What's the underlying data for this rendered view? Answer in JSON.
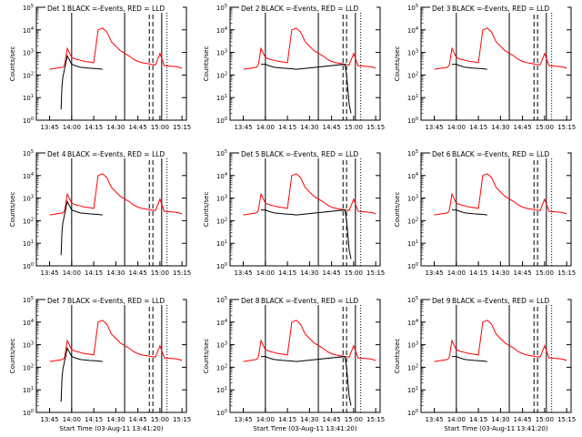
{
  "figure": {
    "y_label": "Counts/sec",
    "x_label": "Start Time (03-Aug-11 13:41:20)",
    "x_ticks": [
      "13:45",
      "14:00",
      "14:15",
      "14:30",
      "14:45",
      "15:00",
      "15:15"
    ],
    "y_ticks": [
      "10^0",
      "10^1",
      "10^2",
      "10^3",
      "10^4",
      "10^5"
    ],
    "legend_text": "BLACK =-Events,  RED = LLD",
    "line_colors": {
      "events": "#000000",
      "lld": "#ff0000"
    }
  },
  "chart_data": [
    {
      "type": "line",
      "title": "Det 1",
      "ylim": [
        1,
        100000
      ],
      "yscale": "log",
      "x_labels_shown": true,
      "xlabel_shown": false,
      "markers": {
        "solid": [
          14.0,
          14.6,
          15.02
        ],
        "dashed": [
          14.88,
          14.92
        ],
        "dotted": [
          15.08
        ]
      },
      "series": [
        {
          "name": "RED",
          "x": [
            13.75,
            13.83,
            13.9,
            13.92,
            13.95,
            14.0,
            14.05,
            14.1,
            14.15,
            14.2,
            14.25,
            14.3,
            14.35,
            14.4,
            14.45,
            14.55,
            14.65,
            14.7,
            14.75,
            14.8,
            14.9,
            14.95,
            15.0,
            15.05,
            15.1,
            15.2,
            15.25
          ],
          "y": [
            180,
            200,
            220,
            280,
            1500,
            600,
            500,
            450,
            400,
            380,
            350,
            10000,
            12000,
            8000,
            3000,
            1200,
            700,
            500,
            400,
            350,
            300,
            280,
            900,
            260,
            250,
            230,
            200
          ]
        },
        {
          "name": "BLACK",
          "x": [
            13.88,
            13.89,
            13.9,
            13.95,
            14.0,
            14.05,
            14.1,
            14.2,
            14.3,
            14.35
          ],
          "y": [
            3,
            30,
            80,
            700,
            300,
            250,
            220,
            200,
            190,
            180
          ]
        }
      ]
    },
    {
      "type": "line",
      "title": "Det 2",
      "ylim": [
        1,
        100000
      ],
      "yscale": "log",
      "x_labels_shown": true,
      "xlabel_shown": false,
      "markers": {
        "solid": [
          14.0,
          14.6,
          15.02
        ],
        "dashed": [
          14.88,
          14.92
        ],
        "dotted": [
          15.08
        ]
      },
      "series": [
        {
          "name": "RED",
          "x": [
            13.75,
            13.83,
            13.9,
            13.92,
            13.95,
            14.0,
            14.05,
            14.1,
            14.15,
            14.2,
            14.25,
            14.3,
            14.35,
            14.4,
            14.45,
            14.55,
            14.65,
            14.7,
            14.75,
            14.8,
            14.9,
            14.95,
            15.0,
            15.05,
            15.1,
            15.2,
            15.25
          ],
          "y": [
            180,
            200,
            220,
            280,
            1500,
            600,
            500,
            450,
            400,
            380,
            350,
            10000,
            12000,
            8000,
            3000,
            1200,
            700,
            500,
            400,
            350,
            300,
            280,
            900,
            260,
            250,
            230,
            200
          ]
        },
        {
          "name": "BLACK",
          "x": [
            13.95,
            14.0,
            14.05,
            14.1,
            14.2,
            14.3,
            14.35,
            14.9,
            14.92,
            14.95,
            14.97
          ],
          "y": [
            300,
            300,
            250,
            220,
            200,
            190,
            180,
            300,
            100,
            5,
            2
          ]
        }
      ]
    },
    {
      "type": "line",
      "title": "Det 3",
      "ylim": [
        1,
        100000
      ],
      "yscale": "log",
      "x_labels_shown": true,
      "xlabel_shown": false,
      "markers": {
        "solid": [
          14.0,
          14.6,
          15.02
        ],
        "dashed": [
          14.88,
          14.92
        ],
        "dotted": [
          15.08
        ]
      },
      "series": [
        {
          "name": "RED",
          "x": [
            13.75,
            13.83,
            13.9,
            13.92,
            13.95,
            14.0,
            14.05,
            14.1,
            14.15,
            14.2,
            14.25,
            14.3,
            14.35,
            14.4,
            14.45,
            14.55,
            14.65,
            14.7,
            14.75,
            14.8,
            14.9,
            14.95,
            15.0,
            15.05,
            15.1,
            15.2,
            15.25
          ],
          "y": [
            180,
            200,
            220,
            280,
            1500,
            600,
            500,
            450,
            400,
            380,
            350,
            10000,
            12000,
            8000,
            3000,
            1200,
            700,
            500,
            400,
            350,
            300,
            280,
            900,
            260,
            250,
            230,
            200
          ]
        },
        {
          "name": "BLACK",
          "x": [
            13.95,
            14.0,
            14.05,
            14.1,
            14.2,
            14.3,
            14.35
          ],
          "y": [
            300,
            300,
            250,
            220,
            200,
            190,
            180
          ]
        }
      ]
    },
    {
      "type": "line",
      "title": "Det 4",
      "ylim": [
        1,
        100000
      ],
      "yscale": "log",
      "x_labels_shown": true,
      "xlabel_shown": false,
      "markers": {
        "solid": [
          14.0,
          14.6,
          15.02
        ],
        "dashed": [
          14.88,
          14.92
        ],
        "dotted": [
          15.08
        ]
      },
      "series": [
        {
          "name": "RED",
          "x": [
            13.75,
            13.83,
            13.9,
            13.92,
            13.95,
            14.0,
            14.05,
            14.1,
            14.15,
            14.2,
            14.25,
            14.3,
            14.35,
            14.4,
            14.45,
            14.55,
            14.65,
            14.7,
            14.75,
            14.8,
            14.9,
            14.95,
            15.0,
            15.05,
            15.1,
            15.2,
            15.25
          ],
          "y": [
            180,
            200,
            220,
            280,
            1500,
            600,
            500,
            450,
            400,
            380,
            350,
            10000,
            12000,
            8000,
            3000,
            1200,
            700,
            500,
            400,
            350,
            300,
            280,
            900,
            260,
            250,
            230,
            200
          ]
        },
        {
          "name": "BLACK",
          "x": [
            13.88,
            13.89,
            13.9,
            13.95,
            14.0,
            14.05,
            14.1,
            14.2,
            14.3,
            14.35
          ],
          "y": [
            3,
            30,
            80,
            700,
            300,
            250,
            220,
            200,
            190,
            180
          ]
        }
      ]
    },
    {
      "type": "line",
      "title": "Det 5",
      "ylim": [
        1,
        100000
      ],
      "yscale": "log",
      "x_labels_shown": true,
      "xlabel_shown": false,
      "markers": {
        "solid": [
          14.0,
          14.6,
          15.02
        ],
        "dashed": [
          14.88,
          14.92
        ],
        "dotted": [
          15.08
        ]
      },
      "series": [
        {
          "name": "RED",
          "x": [
            13.75,
            13.83,
            13.9,
            13.92,
            13.95,
            14.0,
            14.05,
            14.1,
            14.15,
            14.2,
            14.25,
            14.3,
            14.35,
            14.4,
            14.45,
            14.55,
            14.65,
            14.7,
            14.75,
            14.8,
            14.9,
            14.95,
            15.0,
            15.05,
            15.1,
            15.2,
            15.25
          ],
          "y": [
            180,
            200,
            220,
            280,
            1500,
            600,
            500,
            450,
            400,
            380,
            350,
            10000,
            12000,
            8000,
            3000,
            1200,
            700,
            500,
            400,
            350,
            300,
            280,
            900,
            260,
            250,
            230,
            200
          ]
        },
        {
          "name": "BLACK",
          "x": [
            13.95,
            14.0,
            14.05,
            14.1,
            14.2,
            14.3,
            14.35,
            14.9,
            14.92,
            14.95,
            14.97
          ],
          "y": [
            300,
            300,
            250,
            220,
            200,
            190,
            180,
            300,
            100,
            5,
            2
          ]
        }
      ]
    },
    {
      "type": "line",
      "title": "Det 6",
      "ylim": [
        1,
        100000
      ],
      "yscale": "log",
      "x_labels_shown": true,
      "xlabel_shown": false,
      "markers": {
        "solid": [
          14.0,
          14.6,
          15.02
        ],
        "dashed": [
          14.88,
          14.92
        ],
        "dotted": [
          15.08
        ]
      },
      "series": [
        {
          "name": "RED",
          "x": [
            13.75,
            13.83,
            13.9,
            13.92,
            13.95,
            14.0,
            14.05,
            14.1,
            14.15,
            14.2,
            14.25,
            14.3,
            14.35,
            14.4,
            14.45,
            14.55,
            14.65,
            14.7,
            14.75,
            14.8,
            14.9,
            14.95,
            15.0,
            15.05,
            15.1,
            15.2,
            15.25
          ],
          "y": [
            180,
            200,
            220,
            280,
            1500,
            600,
            500,
            450,
            400,
            380,
            350,
            10000,
            12000,
            8000,
            3000,
            1200,
            700,
            500,
            400,
            350,
            300,
            280,
            900,
            260,
            250,
            230,
            200
          ]
        },
        {
          "name": "BLACK",
          "x": [
            13.95,
            14.0,
            14.05,
            14.1,
            14.2,
            14.3,
            14.35
          ],
          "y": [
            300,
            300,
            250,
            220,
            200,
            190,
            180
          ]
        }
      ]
    },
    {
      "type": "line",
      "title": "Det 7",
      "ylim": [
        1,
        100000
      ],
      "yscale": "log",
      "x_labels_shown": true,
      "xlabel_shown": true,
      "markers": {
        "solid": [
          14.0,
          14.6,
          15.02
        ],
        "dashed": [
          14.88,
          14.92
        ],
        "dotted": [
          15.08
        ]
      },
      "series": [
        {
          "name": "RED",
          "x": [
            13.75,
            13.83,
            13.9,
            13.92,
            13.95,
            14.0,
            14.05,
            14.1,
            14.15,
            14.2,
            14.25,
            14.3,
            14.35,
            14.4,
            14.45,
            14.55,
            14.65,
            14.7,
            14.75,
            14.8,
            14.9,
            14.95,
            15.0,
            15.05,
            15.1,
            15.2,
            15.25
          ],
          "y": [
            180,
            200,
            220,
            280,
            1500,
            600,
            500,
            450,
            400,
            380,
            350,
            10000,
            12000,
            8000,
            3000,
            1200,
            700,
            500,
            400,
            350,
            300,
            280,
            900,
            260,
            250,
            230,
            200
          ]
        },
        {
          "name": "BLACK",
          "x": [
            13.88,
            13.89,
            13.9,
            13.95,
            14.0,
            14.05,
            14.1,
            14.2,
            14.3,
            14.35
          ],
          "y": [
            3,
            30,
            80,
            700,
            300,
            250,
            220,
            200,
            190,
            180
          ]
        }
      ]
    },
    {
      "type": "line",
      "title": "Det 8",
      "ylim": [
        1,
        100000
      ],
      "yscale": "log",
      "x_labels_shown": true,
      "xlabel_shown": true,
      "markers": {
        "solid": [
          14.0,
          14.6,
          15.02
        ],
        "dashed": [
          14.88,
          14.92
        ],
        "dotted": [
          15.08
        ]
      },
      "series": [
        {
          "name": "RED",
          "x": [
            13.75,
            13.83,
            13.9,
            13.92,
            13.95,
            14.0,
            14.05,
            14.1,
            14.15,
            14.2,
            14.25,
            14.3,
            14.35,
            14.4,
            14.45,
            14.55,
            14.65,
            14.7,
            14.75,
            14.8,
            14.9,
            14.95,
            15.0,
            15.05,
            15.1,
            15.2,
            15.25
          ],
          "y": [
            180,
            200,
            220,
            280,
            1500,
            600,
            500,
            450,
            400,
            380,
            350,
            10000,
            12000,
            8000,
            3000,
            1200,
            700,
            500,
            400,
            350,
            300,
            280,
            900,
            260,
            250,
            230,
            200
          ]
        },
        {
          "name": "BLACK",
          "x": [
            13.95,
            14.0,
            14.05,
            14.1,
            14.2,
            14.3,
            14.35,
            14.9,
            14.92,
            14.95,
            14.97
          ],
          "y": [
            300,
            300,
            250,
            220,
            200,
            190,
            180,
            300,
            100,
            5,
            2
          ]
        }
      ]
    },
    {
      "type": "line",
      "title": "Det 9",
      "ylim": [
        1,
        100000
      ],
      "yscale": "log",
      "x_labels_shown": true,
      "xlabel_shown": true,
      "markers": {
        "solid": [
          14.0,
          14.6,
          15.02
        ],
        "dashed": [
          14.88,
          14.92
        ],
        "dotted": [
          15.08
        ]
      },
      "series": [
        {
          "name": "RED",
          "x": [
            13.75,
            13.83,
            13.9,
            13.92,
            13.95,
            14.0,
            14.05,
            14.1,
            14.15,
            14.2,
            14.25,
            14.3,
            14.35,
            14.4,
            14.45,
            14.55,
            14.65,
            14.7,
            14.75,
            14.8,
            14.9,
            14.95,
            15.0,
            15.05,
            15.1,
            15.2,
            15.25
          ],
          "y": [
            180,
            200,
            220,
            280,
            1500,
            600,
            500,
            450,
            400,
            380,
            350,
            10000,
            12000,
            8000,
            3000,
            1200,
            700,
            500,
            400,
            350,
            300,
            280,
            900,
            260,
            250,
            230,
            200
          ]
        },
        {
          "name": "BLACK",
          "x": [
            13.95,
            14.0,
            14.05,
            14.1,
            14.2,
            14.3,
            14.35
          ],
          "y": [
            300,
            300,
            250,
            220,
            200,
            190,
            180
          ]
        }
      ]
    }
  ]
}
